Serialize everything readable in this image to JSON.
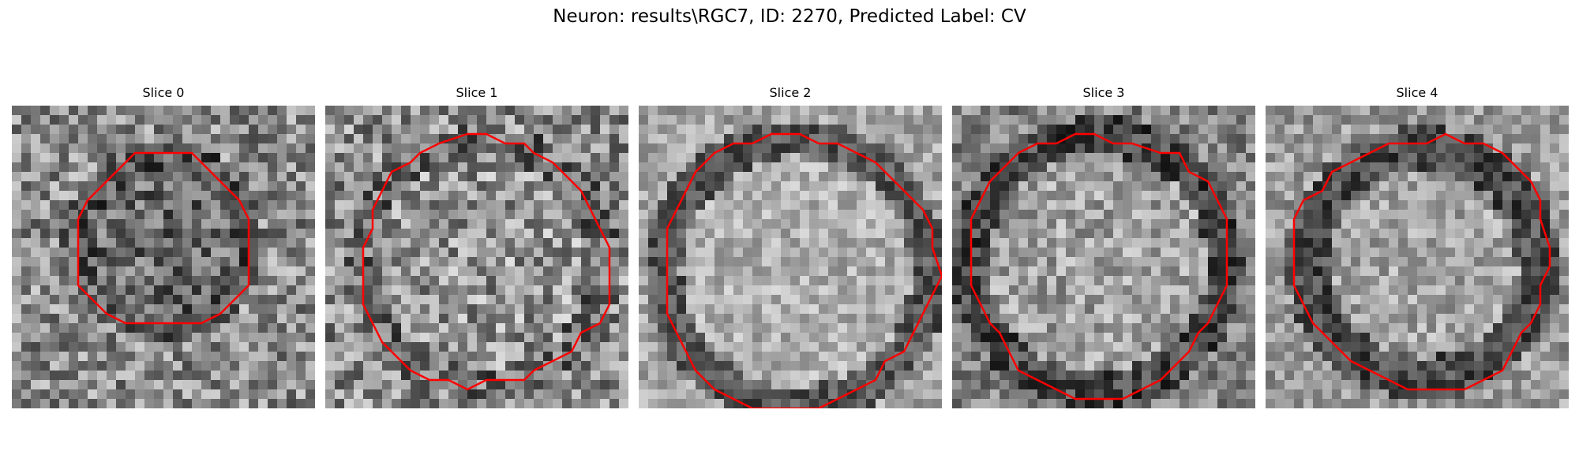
{
  "figure": {
    "title": "Neuron: results\\RGC7, ID: 2270, Predicted Label: CV"
  },
  "slices": [
    {
      "title": "Slice 0"
    },
    {
      "title": "Slice 1"
    },
    {
      "title": "Slice 2"
    },
    {
      "title": "Slice 3"
    },
    {
      "title": "Slice 4"
    }
  ],
  "colors": {
    "contour": "#ff0000",
    "background": "#ffffff"
  }
}
